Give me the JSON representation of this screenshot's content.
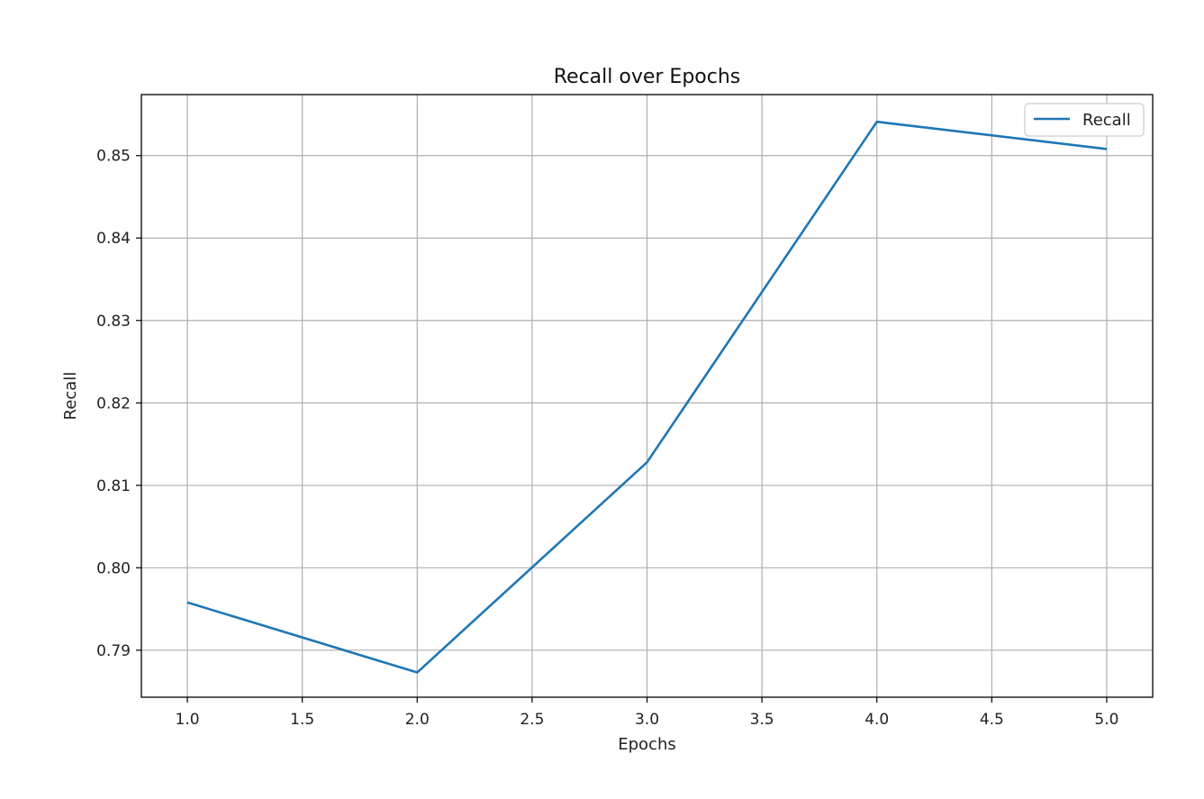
{
  "chart_data": {
    "type": "line",
    "title": "Recall over Epochs",
    "xlabel": "Epochs",
    "ylabel": "Recall",
    "x": [
      1,
      2,
      3,
      4,
      5
    ],
    "series": [
      {
        "name": "Recall",
        "values": [
          0.7958,
          0.7873,
          0.8128,
          0.8541,
          0.8508
        ]
      }
    ],
    "xlim": [
      0.8,
      5.2
    ],
    "ylim": [
      0.7843,
      0.8574
    ],
    "xticks": [
      "1.0",
      "1.5",
      "2.0",
      "2.5",
      "3.0",
      "3.5",
      "4.0",
      "4.5",
      "5.0"
    ],
    "yticks": [
      "0.79",
      "0.80",
      "0.81",
      "0.82",
      "0.83",
      "0.84",
      "0.85"
    ],
    "grid": true,
    "legend": "upper right",
    "colors": {
      "series": "#1f77b4"
    }
  }
}
